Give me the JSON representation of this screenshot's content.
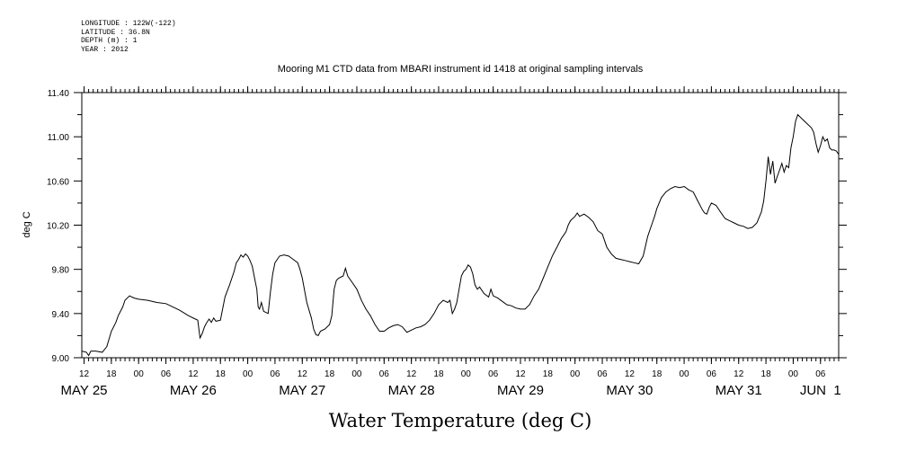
{
  "header": {
    "longitude": "LONGITUDE : 122W(-122)",
    "latitude": "LATITUDE : 36.8N",
    "depth": "DEPTH (m) : 1",
    "year": "YEAR : 2012"
  },
  "chart_data": {
    "type": "line",
    "title": "Mooring M1 CTD data from MBARI instrument id 1418 at original sampling intervals",
    "xlabel": "Water Temperature (deg C)",
    "ylabel": "deg C",
    "ylim": [
      9.0,
      11.4
    ],
    "y_ticks": [
      "9.00",
      "9.40",
      "9.80",
      "10.20",
      "10.60",
      "11.00",
      "11.40"
    ],
    "x_hour_ticks": [
      {
        "hours_from_may25_00": 12,
        "label": "12"
      },
      {
        "hours_from_may25_00": 18,
        "label": "18"
      },
      {
        "hours_from_may25_00": 24,
        "label": "00"
      },
      {
        "hours_from_may25_00": 30,
        "label": "06"
      },
      {
        "hours_from_may25_00": 36,
        "label": "12"
      },
      {
        "hours_from_may25_00": 42,
        "label": "18"
      },
      {
        "hours_from_may25_00": 48,
        "label": "00"
      },
      {
        "hours_from_may25_00": 54,
        "label": "06"
      },
      {
        "hours_from_may25_00": 60,
        "label": "12"
      },
      {
        "hours_from_may25_00": 66,
        "label": "18"
      },
      {
        "hours_from_may25_00": 72,
        "label": "00"
      },
      {
        "hours_from_may25_00": 78,
        "label": "06"
      },
      {
        "hours_from_may25_00": 84,
        "label": "12"
      },
      {
        "hours_from_may25_00": 90,
        "label": "18"
      },
      {
        "hours_from_may25_00": 96,
        "label": "00"
      },
      {
        "hours_from_may25_00": 102,
        "label": "06"
      },
      {
        "hours_from_may25_00": 108,
        "label": "12"
      },
      {
        "hours_from_may25_00": 114,
        "label": "18"
      },
      {
        "hours_from_may25_00": 120,
        "label": "00"
      },
      {
        "hours_from_may25_00": 126,
        "label": "06"
      },
      {
        "hours_from_may25_00": 132,
        "label": "12"
      },
      {
        "hours_from_may25_00": 138,
        "label": "18"
      },
      {
        "hours_from_may25_00": 144,
        "label": "00"
      },
      {
        "hours_from_may25_00": 150,
        "label": "06"
      },
      {
        "hours_from_may25_00": 156,
        "label": "12"
      },
      {
        "hours_from_may25_00": 162,
        "label": "18"
      },
      {
        "hours_from_may25_00": 168,
        "label": "00"
      },
      {
        "hours_from_may25_00": 174,
        "label": "06"
      }
    ],
    "x_day_labels": [
      {
        "hours_from_may25_00": 12,
        "label": "MAY 25"
      },
      {
        "hours_from_may25_00": 36,
        "label": "MAY 26"
      },
      {
        "hours_from_may25_00": 60,
        "label": "MAY 27"
      },
      {
        "hours_from_may25_00": 84,
        "label": "MAY 28"
      },
      {
        "hours_from_may25_00": 108,
        "label": "MAY 29"
      },
      {
        "hours_from_may25_00": 132,
        "label": "MAY 30"
      },
      {
        "hours_from_may25_00": 156,
        "label": "MAY 31"
      },
      {
        "hours_from_may25_00": 174,
        "label": "JUN  1"
      }
    ],
    "xlim_hours": [
      11.5,
      178
    ],
    "series": [
      {
        "points": [
          [
            11.5,
            9.06
          ],
          [
            12.5,
            9.05
          ],
          [
            13.0,
            9.02
          ],
          [
            13.5,
            9.06
          ],
          [
            14.5,
            9.06
          ],
          [
            16.0,
            9.05
          ],
          [
            17.0,
            9.1
          ],
          [
            18.0,
            9.24
          ],
          [
            19.0,
            9.32
          ],
          [
            19.5,
            9.38
          ],
          [
            20.0,
            9.42
          ],
          [
            20.5,
            9.46
          ],
          [
            21.0,
            9.52
          ],
          [
            22.0,
            9.56
          ],
          [
            23.0,
            9.54
          ],
          [
            24.0,
            9.53
          ],
          [
            26.0,
            9.52
          ],
          [
            28.0,
            9.5
          ],
          [
            30.0,
            9.49
          ],
          [
            32.0,
            9.45
          ],
          [
            33.0,
            9.43
          ],
          [
            35.0,
            9.38
          ],
          [
            36.5,
            9.35
          ],
          [
            37.0,
            9.34
          ],
          [
            37.5,
            9.18
          ],
          [
            38.0,
            9.22
          ],
          [
            38.5,
            9.28
          ],
          [
            39.0,
            9.32
          ],
          [
            39.5,
            9.35
          ],
          [
            40.0,
            9.32
          ],
          [
            40.5,
            9.36
          ],
          [
            41.0,
            9.33
          ],
          [
            42.0,
            9.34
          ],
          [
            43.0,
            9.55
          ],
          [
            44.0,
            9.66
          ],
          [
            45.0,
            9.78
          ],
          [
            45.5,
            9.86
          ],
          [
            46.0,
            9.89
          ],
          [
            46.5,
            9.93
          ],
          [
            47.0,
            9.91
          ],
          [
            47.5,
            9.94
          ],
          [
            48.0,
            9.92
          ],
          [
            48.5,
            9.88
          ],
          [
            49.0,
            9.83
          ],
          [
            49.5,
            9.72
          ],
          [
            50.0,
            9.62
          ],
          [
            50.3,
            9.46
          ],
          [
            50.6,
            9.44
          ],
          [
            51.0,
            9.5
          ],
          [
            51.5,
            9.42
          ],
          [
            52.0,
            9.41
          ],
          [
            52.5,
            9.4
          ],
          [
            53.0,
            9.6
          ],
          [
            53.5,
            9.76
          ],
          [
            54.0,
            9.86
          ],
          [
            55.0,
            9.92
          ],
          [
            56.0,
            9.93
          ],
          [
            57.0,
            9.92
          ],
          [
            58.0,
            9.89
          ],
          [
            59.0,
            9.86
          ],
          [
            59.5,
            9.8
          ],
          [
            60.0,
            9.72
          ],
          [
            61.0,
            9.5
          ],
          [
            62.0,
            9.36
          ],
          [
            62.5,
            9.26
          ],
          [
            63.0,
            9.21
          ],
          [
            63.5,
            9.2
          ],
          [
            64.0,
            9.24
          ],
          [
            65.0,
            9.26
          ],
          [
            66.0,
            9.3
          ],
          [
            66.5,
            9.38
          ],
          [
            67.0,
            9.62
          ],
          [
            67.5,
            9.7
          ],
          [
            68.0,
            9.72
          ],
          [
            69.0,
            9.74
          ],
          [
            69.5,
            9.81
          ],
          [
            70.0,
            9.74
          ],
          [
            71.0,
            9.68
          ],
          [
            72.0,
            9.62
          ],
          [
            73.0,
            9.52
          ],
          [
            74.0,
            9.44
          ],
          [
            75.0,
            9.38
          ],
          [
            76.0,
            9.3
          ],
          [
            77.0,
            9.24
          ],
          [
            78.0,
            9.24
          ],
          [
            79.0,
            9.27
          ],
          [
            80.0,
            9.29
          ],
          [
            81.0,
            9.3
          ],
          [
            82.0,
            9.28
          ],
          [
            83.0,
            9.23
          ],
          [
            84.0,
            9.25
          ],
          [
            85.0,
            9.27
          ],
          [
            86.0,
            9.28
          ],
          [
            87.0,
            9.3
          ],
          [
            88.0,
            9.34
          ],
          [
            89.0,
            9.4
          ],
          [
            90.0,
            9.48
          ],
          [
            91.0,
            9.52
          ],
          [
            92.0,
            9.5
          ],
          [
            92.5,
            9.52
          ],
          [
            93.0,
            9.4
          ],
          [
            93.5,
            9.44
          ],
          [
            94.0,
            9.5
          ],
          [
            94.5,
            9.62
          ],
          [
            95.0,
            9.74
          ],
          [
            95.5,
            9.78
          ],
          [
            96.0,
            9.8
          ],
          [
            96.5,
            9.84
          ],
          [
            97.0,
            9.82
          ],
          [
            97.5,
            9.76
          ],
          [
            98.0,
            9.66
          ],
          [
            98.5,
            9.62
          ],
          [
            99.0,
            9.64
          ],
          [
            100.0,
            9.58
          ],
          [
            101.0,
            9.55
          ],
          [
            101.5,
            9.62
          ],
          [
            102.0,
            9.56
          ],
          [
            103.0,
            9.54
          ],
          [
            104.0,
            9.51
          ],
          [
            105.0,
            9.48
          ],
          [
            106.0,
            9.47
          ],
          [
            107.0,
            9.45
          ],
          [
            108.0,
            9.44
          ],
          [
            109.0,
            9.44
          ],
          [
            110.0,
            9.48
          ],
          [
            111.0,
            9.56
          ],
          [
            112.0,
            9.62
          ],
          [
            113.0,
            9.72
          ],
          [
            114.0,
            9.82
          ],
          [
            115.0,
            9.92
          ],
          [
            116.0,
            10.0
          ],
          [
            117.0,
            10.08
          ],
          [
            118.0,
            10.14
          ],
          [
            118.5,
            10.2
          ],
          [
            119.0,
            10.24
          ],
          [
            120.0,
            10.28
          ],
          [
            120.5,
            10.31
          ],
          [
            121.0,
            10.28
          ],
          [
            122.0,
            10.3
          ],
          [
            123.0,
            10.27
          ],
          [
            124.0,
            10.23
          ],
          [
            125.0,
            10.15
          ],
          [
            126.0,
            10.12
          ],
          [
            127.0,
            10.0
          ],
          [
            128.0,
            9.94
          ],
          [
            129.0,
            9.9
          ],
          [
            130.0,
            9.89
          ],
          [
            131.0,
            9.88
          ],
          [
            132.0,
            9.87
          ],
          [
            133.0,
            9.86
          ],
          [
            134.0,
            9.85
          ],
          [
            135.0,
            9.92
          ],
          [
            136.0,
            10.1
          ],
          [
            137.0,
            10.22
          ],
          [
            137.5,
            10.28
          ],
          [
            138.0,
            10.35
          ],
          [
            139.0,
            10.45
          ],
          [
            140.0,
            10.5
          ],
          [
            141.0,
            10.53
          ],
          [
            142.0,
            10.55
          ],
          [
            143.0,
            10.54
          ],
          [
            144.0,
            10.55
          ],
          [
            145.0,
            10.52
          ],
          [
            146.0,
            10.5
          ],
          [
            146.5,
            10.46
          ],
          [
            147.0,
            10.42
          ],
          [
            148.0,
            10.34
          ],
          [
            148.5,
            10.31
          ],
          [
            149.0,
            10.3
          ],
          [
            149.5,
            10.36
          ],
          [
            150.0,
            10.4
          ],
          [
            151.0,
            10.38
          ],
          [
            152.0,
            10.32
          ],
          [
            153.0,
            10.26
          ],
          [
            154.0,
            10.24
          ],
          [
            155.0,
            10.22
          ],
          [
            156.0,
            10.2
          ],
          [
            157.0,
            10.19
          ],
          [
            158.0,
            10.17
          ],
          [
            159.0,
            10.18
          ],
          [
            160.0,
            10.22
          ],
          [
            161.0,
            10.32
          ],
          [
            161.5,
            10.42
          ],
          [
            162.0,
            10.6
          ],
          [
            162.5,
            10.82
          ],
          [
            163.0,
            10.66
          ],
          [
            163.5,
            10.78
          ],
          [
            164.0,
            10.58
          ],
          [
            164.5,
            10.64
          ],
          [
            165.0,
            10.7
          ],
          [
            165.5,
            10.76
          ],
          [
            166.0,
            10.68
          ],
          [
            166.5,
            10.74
          ],
          [
            167.0,
            10.72
          ],
          [
            167.5,
            10.9
          ],
          [
            168.0,
            11.0
          ],
          [
            168.5,
            11.14
          ],
          [
            169.0,
            11.2
          ],
          [
            170.0,
            11.16
          ],
          [
            171.0,
            11.12
          ],
          [
            172.0,
            11.08
          ],
          [
            172.5,
            11.04
          ],
          [
            173.0,
            10.94
          ],
          [
            173.5,
            10.86
          ],
          [
            174.0,
            10.92
          ],
          [
            174.5,
            11.0
          ],
          [
            175.0,
            10.96
          ],
          [
            175.5,
            10.98
          ],
          [
            176.0,
            10.9
          ],
          [
            176.5,
            10.88
          ],
          [
            177.0,
            10.88
          ],
          [
            177.5,
            10.87
          ],
          [
            178.0,
            10.84
          ]
        ]
      }
    ]
  }
}
